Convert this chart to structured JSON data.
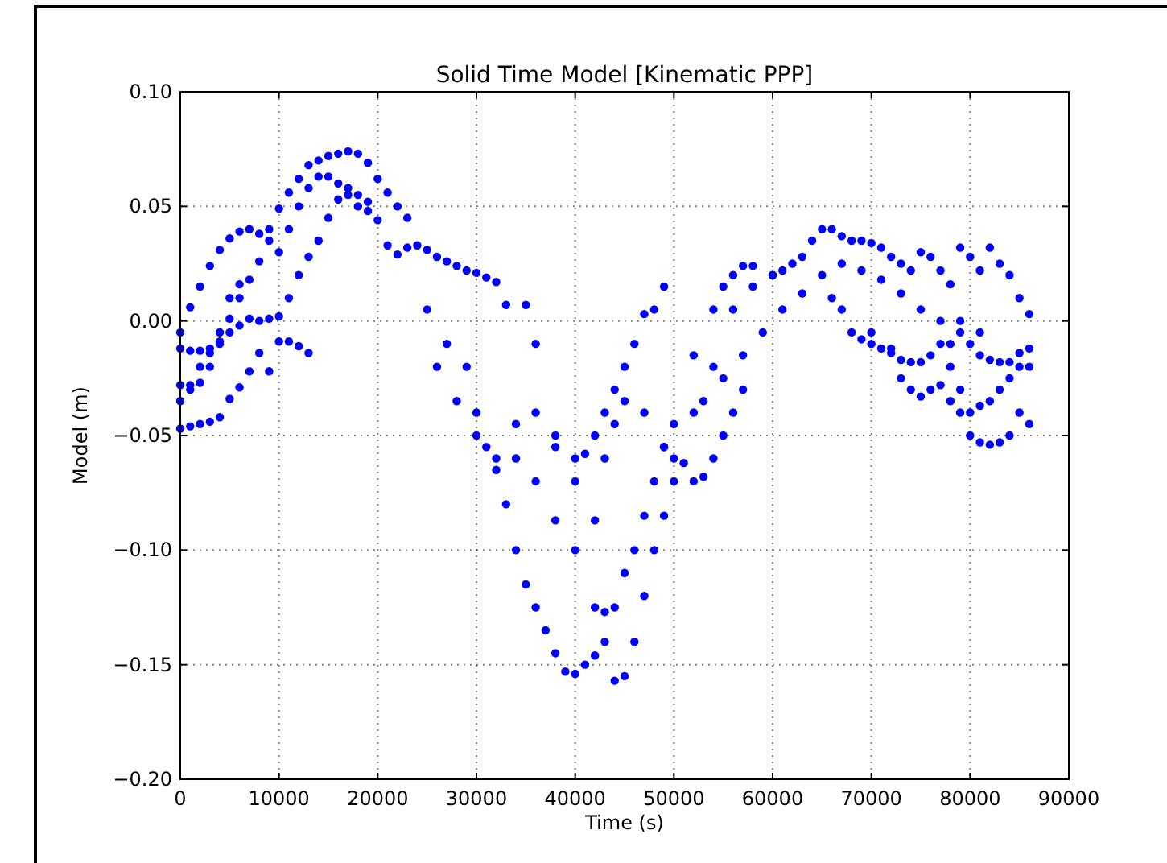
{
  "chart_data": {
    "type": "scatter",
    "title": "Solid Time Model [Kinematic PPP]",
    "xlabel": "Time (s)",
    "ylabel": "Model (m)",
    "xlim": [
      0,
      90000
    ],
    "xticks": [
      0,
      10000,
      20000,
      30000,
      40000,
      50000,
      60000,
      70000,
      80000,
      90000
    ],
    "ylim": [
      -0.2,
      0.1
    ],
    "yticks": [
      {
        "value": -0.2,
        "label": "−0.20"
      },
      {
        "value": -0.15,
        "label": "−0.15"
      },
      {
        "value": -0.1,
        "label": "−0.10"
      },
      {
        "value": -0.05,
        "label": "−0.05"
      },
      {
        "value": 0,
        "label": "0.00"
      },
      {
        "value": 0.05,
        "label": "0.05"
      },
      {
        "value": 0.1,
        "label": "0.10"
      }
    ],
    "grid": true,
    "marker": "circle",
    "color": "#0000ff",
    "x": [
      0,
      1000,
      2000,
      3000,
      4000,
      5000,
      6000,
      7000,
      8000,
      9000,
      10000,
      11000,
      12000,
      13000,
      14000,
      15000,
      16000,
      17000,
      18000,
      19000,
      20000,
      21000,
      22000,
      23000,
      0,
      1000,
      2000,
      3000,
      4000,
      5000,
      6000,
      7000,
      8000,
      9000,
      10000,
      11000,
      12000,
      13000,
      14000,
      15000,
      16000,
      17000,
      18000,
      19000,
      20000,
      21000,
      22000,
      23000,
      24000,
      25000,
      26000,
      27000,
      28000,
      29000,
      30000,
      31000,
      32000,
      33000,
      35000,
      36000,
      0,
      1000,
      2000,
      3000,
      4000,
      5000,
      6000,
      7000,
      8000,
      9000,
      10000,
      11000,
      12000,
      13000,
      0,
      1000,
      2000,
      3000,
      4000,
      5000,
      6000,
      7000,
      8000,
      9000,
      10000,
      11000,
      12000,
      13000,
      14000,
      15000,
      16000,
      17000,
      18000,
      19000,
      0,
      1000,
      2000,
      3000,
      4000,
      5000,
      6000,
      25000,
      27000,
      29000,
      30000,
      31000,
      32000,
      33000,
      34000,
      35000,
      36000,
      37000,
      38000,
      39000,
      40000,
      41000,
      42000,
      43000,
      44000,
      45000,
      46000,
      47000,
      48000,
      49000,
      50000,
      26000,
      28000,
      30000,
      32000,
      34000,
      36000,
      38000,
      40000,
      42000,
      43000,
      44000,
      45000,
      46000,
      47000,
      48000,
      49000,
      50000,
      52000,
      54000,
      56000,
      58000,
      60000,
      34000,
      36000,
      38000,
      40000,
      41000,
      42000,
      43000,
      44000,
      45000,
      46000,
      47000,
      48000,
      49000,
      38000,
      40000,
      42000,
      43000,
      44000,
      45000,
      47000,
      49000,
      50000,
      51000,
      52000,
      53000,
      54000,
      55000,
      56000,
      57000,
      52000,
      54000,
      55000,
      56000,
      57000,
      58000,
      60000,
      61000,
      62000,
      63000,
      64000,
      65000,
      66000,
      67000,
      68000,
      69000,
      70000,
      71000,
      72000,
      73000,
      74000,
      75000,
      76000,
      77000,
      78000,
      79000,
      80000,
      81000,
      82000,
      83000,
      84000,
      85000,
      86000,
      66000,
      67000,
      68000,
      69000,
      70000,
      71000,
      72000,
      73000,
      74000,
      75000,
      76000,
      77000,
      78000,
      79000,
      80000,
      81000,
      82000,
      83000,
      84000,
      85000,
      86000,
      70000,
      72000,
      73000,
      74000,
      75000,
      76000,
      77000,
      78000,
      79000,
      80000,
      81000,
      82000,
      83000,
      84000,
      85000,
      86000,
      78000,
      79000,
      80000,
      81000,
      82000,
      83000,
      84000,
      85000,
      86000,
      53000,
      55000,
      57000,
      59000,
      61000,
      63000,
      65000,
      67000,
      69000,
      71000,
      73000,
      75000,
      77000,
      79000,
      81000
    ],
    "values": [
      -0.005,
      0.006,
      0.015,
      0.024,
      0.031,
      0.036,
      0.039,
      0.04,
      0.038,
      0.04,
      0.049,
      0.056,
      0.062,
      0.068,
      0.07,
      0.072,
      0.073,
      0.074,
      0.073,
      0.069,
      0.062,
      0.056,
      0.05,
      0.045,
      -0.028,
      -0.028,
      -0.027,
      -0.02,
      -0.01,
      0.001,
      0.01,
      0.018,
      0.026,
      0.035,
      0.03,
      0.04,
      0.05,
      0.058,
      0.063,
      0.063,
      0.06,
      0.055,
      0.05,
      0.048,
      0.044,
      0.033,
      0.029,
      0.032,
      0.033,
      0.031,
      0.028,
      0.026,
      0.024,
      0.022,
      0.021,
      0.019,
      0.017,
      0.007,
      0.007,
      -0.01,
      -0.047,
      -0.046,
      -0.045,
      -0.044,
      -0.042,
      -0.034,
      -0.029,
      -0.022,
      -0.014,
      -0.022,
      -0.009,
      -0.009,
      -0.011,
      -0.014,
      -0.012,
      -0.013,
      -0.013,
      -0.012,
      -0.009,
      -0.005,
      -0.002,
      0.001,
      0,
      0.001,
      0.002,
      0.01,
      0.02,
      0.028,
      0.035,
      0.045,
      0.053,
      0.058,
      0.055,
      0.052,
      -0.035,
      -0.03,
      -0.02,
      -0.014,
      -0.005,
      0.01,
      0.016,
      0.005,
      -0.01,
      -0.02,
      -0.04,
      -0.055,
      -0.065,
      -0.08,
      -0.1,
      -0.115,
      -0.125,
      -0.135,
      -0.145,
      -0.153,
      -0.154,
      -0.15,
      -0.146,
      -0.14,
      -0.157,
      -0.155,
      -0.14,
      -0.12,
      -0.1,
      -0.085,
      -0.07,
      -0.02,
      -0.035,
      -0.05,
      -0.06,
      -0.06,
      -0.07,
      -0.087,
      -0.1,
      -0.125,
      -0.127,
      -0.125,
      -0.11,
      -0.1,
      -0.085,
      -0.07,
      -0.055,
      -0.045,
      -0.04,
      -0.02,
      0.005,
      0.015,
      0.02,
      -0.045,
      -0.04,
      -0.055,
      -0.06,
      -0.058,
      -0.05,
      -0.04,
      -0.03,
      -0.02,
      -0.01,
      0.003,
      0.005,
      0.015,
      -0.05,
      -0.07,
      -0.087,
      -0.06,
      -0.045,
      -0.035,
      -0.04,
      -0.055,
      -0.06,
      -0.062,
      -0.07,
      -0.068,
      -0.06,
      -0.05,
      -0.04,
      -0.03,
      -0.015,
      0.005,
      0.015,
      0.02,
      0.024,
      0.024,
      0.02,
      0.022,
      0.025,
      0.028,
      0.035,
      0.04,
      0.04,
      0.037,
      0.035,
      0.035,
      0.034,
      0.032,
      0.028,
      0.025,
      0.022,
      0.03,
      0.028,
      0.022,
      0.016,
      0.032,
      0.028,
      0.022,
      0.032,
      0.025,
      0.02,
      0.01,
      0.003,
      0.01,
      0.005,
      -0.005,
      -0.008,
      -0.01,
      -0.012,
      -0.014,
      -0.017,
      -0.018,
      -0.018,
      -0.015,
      -0.01,
      -0.01,
      -0.005,
      -0.01,
      -0.015,
      -0.017,
      -0.018,
      -0.018,
      -0.014,
      -0.012,
      -0.005,
      -0.012,
      -0.025,
      -0.03,
      -0.033,
      -0.03,
      -0.028,
      -0.035,
      -0.04,
      -0.05,
      -0.053,
      -0.054,
      -0.053,
      -0.05,
      -0.04,
      -0.045,
      -0.02,
      -0.03,
      -0.04,
      -0.037,
      -0.035,
      -0.03,
      -0.025,
      -0.02,
      -0.02,
      -0.035,
      -0.025,
      -0.015,
      -0.005,
      0.005,
      0.012,
      0.02,
      0.025,
      0.022,
      0.018,
      0.012,
      0.005,
      0,
      0,
      -0.005
    ]
  }
}
